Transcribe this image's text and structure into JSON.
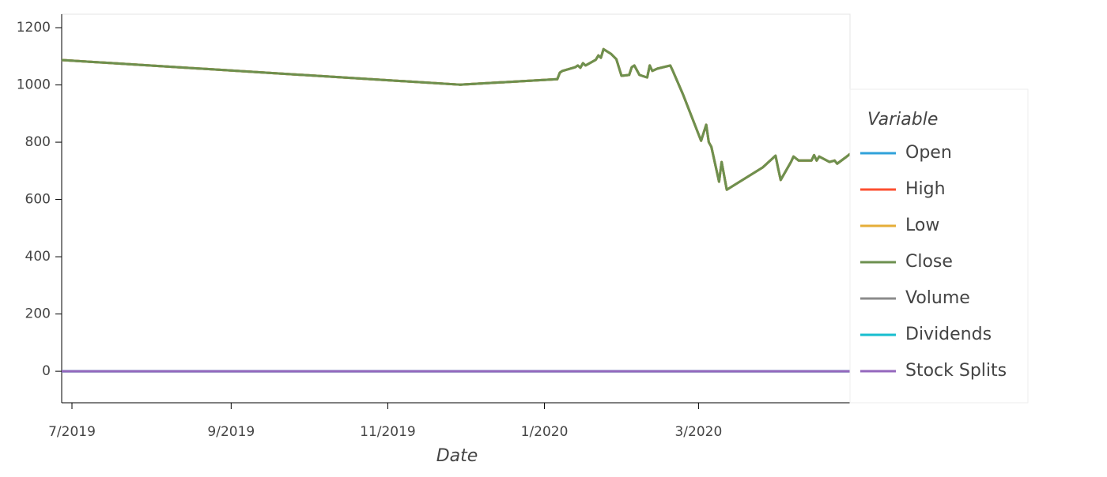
{
  "chart_data": {
    "type": "line",
    "x_label": "Date",
    "legend_title": "Variable",
    "legend": "right",
    "x": [
      "2019-06-27",
      "2019-11-29",
      "2020-01-06",
      "2020-01-07",
      "2020-01-08",
      "2020-01-10",
      "2020-01-13",
      "2020-01-14",
      "2020-01-15",
      "2020-01-16",
      "2020-01-17",
      "2020-01-21",
      "2020-01-22",
      "2020-01-23",
      "2020-01-24",
      "2020-01-27",
      "2020-01-29",
      "2020-01-31",
      "2020-02-03",
      "2020-02-04",
      "2020-02-05",
      "2020-02-07",
      "2020-02-10",
      "2020-02-11",
      "2020-02-12",
      "2020-02-14",
      "2020-02-19",
      "2020-02-20",
      "2020-02-24",
      "2020-03-02",
      "2020-03-04",
      "2020-03-05",
      "2020-03-06",
      "2020-03-09",
      "2020-03-10",
      "2020-03-12",
      "2020-03-26",
      "2020-03-31",
      "2020-04-01",
      "2020-04-02",
      "2020-04-06",
      "2020-04-07",
      "2020-04-09",
      "2020-04-14",
      "2020-04-15",
      "2020-04-16",
      "2020-04-17",
      "2020-04-21",
      "2020-04-23",
      "2020-04-24",
      "2020-04-27",
      "2020-04-29"
    ],
    "series": [
      {
        "name": "Open",
        "color": "#30a2da",
        "values": [
          1087,
          1001,
          1020,
          1043,
          1049,
          1054,
          1062,
          1068,
          1060,
          1076,
          1068,
          1088,
          1103,
          1095,
          1125,
          1108,
          1090,
          1032,
          1035,
          1062,
          1068,
          1035,
          1026,
          1068,
          1049,
          1057,
          1068,
          1049,
          966,
          805,
          861,
          800,
          784,
          662,
          731,
          634,
          712,
          753,
          709,
          668,
          731,
          750,
          736,
          736,
          755,
          736,
          750,
          731,
          736,
          725,
          745,
          759
        ]
      },
      {
        "name": "High",
        "color": "#fc4f30",
        "values": [
          1087,
          1001,
          1020,
          1043,
          1049,
          1054,
          1062,
          1068,
          1060,
          1076,
          1068,
          1088,
          1103,
          1095,
          1125,
          1108,
          1090,
          1032,
          1035,
          1062,
          1068,
          1035,
          1026,
          1068,
          1049,
          1057,
          1068,
          1049,
          966,
          805,
          861,
          800,
          784,
          662,
          731,
          634,
          712,
          753,
          709,
          668,
          731,
          750,
          736,
          736,
          755,
          736,
          750,
          731,
          736,
          725,
          745,
          759
        ]
      },
      {
        "name": "Low",
        "color": "#e5ae38",
        "values": [
          1087,
          1001,
          1020,
          1043,
          1049,
          1054,
          1062,
          1068,
          1060,
          1076,
          1068,
          1088,
          1103,
          1095,
          1125,
          1108,
          1090,
          1032,
          1035,
          1062,
          1068,
          1035,
          1026,
          1068,
          1049,
          1057,
          1068,
          1049,
          966,
          805,
          861,
          800,
          784,
          662,
          731,
          634,
          712,
          753,
          709,
          668,
          731,
          750,
          736,
          736,
          755,
          736,
          750,
          731,
          736,
          725,
          745,
          759
        ]
      },
      {
        "name": "Close",
        "color": "#6d904f",
        "values": [
          1087,
          1001,
          1020,
          1043,
          1049,
          1054,
          1062,
          1068,
          1060,
          1076,
          1068,
          1088,
          1103,
          1095,
          1125,
          1108,
          1090,
          1032,
          1035,
          1062,
          1068,
          1035,
          1026,
          1068,
          1049,
          1057,
          1068,
          1049,
          966,
          805,
          861,
          800,
          784,
          662,
          731,
          634,
          712,
          753,
          709,
          668,
          731,
          750,
          736,
          736,
          755,
          736,
          750,
          731,
          736,
          725,
          745,
          759
        ]
      },
      {
        "name": "Volume",
        "color": "#8b8b8b",
        "values": [
          0,
          0,
          0,
          0,
          0,
          0,
          0,
          0,
          0,
          0,
          0,
          0,
          0,
          0,
          0,
          0,
          0,
          0,
          0,
          0,
          0,
          0,
          0,
          0,
          0,
          0,
          0,
          0,
          0,
          0,
          0,
          0,
          0,
          0,
          0,
          0,
          0,
          0,
          0,
          0,
          0,
          0,
          0,
          0,
          0,
          0,
          0,
          0,
          0,
          0,
          0,
          0
        ]
      },
      {
        "name": "Dividends",
        "color": "#17becf",
        "values": [
          0,
          0,
          0,
          0,
          0,
          0,
          0,
          0,
          0,
          0,
          0,
          0,
          0,
          0,
          0,
          0,
          0,
          0,
          0,
          0,
          0,
          0,
          0,
          0,
          0,
          0,
          0,
          0,
          0,
          0,
          0,
          0,
          0,
          0,
          0,
          0,
          0,
          0,
          0,
          0,
          0,
          0,
          0,
          0,
          0,
          0,
          0,
          0,
          0,
          0,
          0,
          0
        ]
      },
      {
        "name": "Stock Splits",
        "color": "#9467bd",
        "values": [
          0,
          0,
          0,
          0,
          0,
          0,
          0,
          0,
          0,
          0,
          0,
          0,
          0,
          0,
          0,
          0,
          0,
          0,
          0,
          0,
          0,
          0,
          0,
          0,
          0,
          0,
          0,
          0,
          0,
          0,
          0,
          0,
          0,
          0,
          0,
          0,
          0,
          0,
          0,
          0,
          0,
          0,
          0,
          0,
          0,
          0,
          0,
          0,
          0,
          0,
          0,
          0
        ]
      }
    ],
    "xlim": [
      "2019-06-27",
      "2020-04-29"
    ],
    "xticks": [
      {
        "value": "2019-07-01",
        "label": "7/2019"
      },
      {
        "value": "2019-09-01",
        "label": "9/2019"
      },
      {
        "value": "2019-11-01",
        "label": "11/2019"
      },
      {
        "value": "2020-01-01",
        "label": "1/2020"
      },
      {
        "value": "2020-03-01",
        "label": "3/2020"
      }
    ],
    "ylim": [
      -110,
      1247
    ],
    "yticks": [
      0,
      200,
      400,
      600,
      800,
      1000,
      1200
    ],
    "grid": false
  }
}
